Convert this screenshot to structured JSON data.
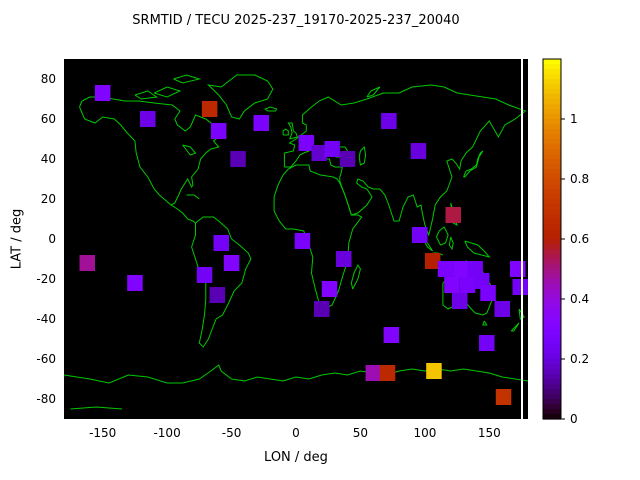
{
  "colors": {
    "page_bg": "#ffffff",
    "plot_bg": "#000000",
    "coastline": "#00c800",
    "text": "#000000"
  },
  "chart_data": {
    "type": "heatmap",
    "title": "SRMTID / TECU 2025-237_19170-2025-237_20040",
    "xlabel": "LON / deg",
    "ylabel": "LAT / deg",
    "xlim": [
      -180,
      180
    ],
    "ylim": [
      -90,
      90
    ],
    "xticks": [
      -150,
      -100,
      -50,
      0,
      50,
      100,
      150
    ],
    "yticks": [
      80,
      60,
      40,
      20,
      0,
      -20,
      -40,
      -60,
      -80
    ],
    "grid": false,
    "legend": "colorbar-right",
    "colorbar_range": [
      0,
      1.2
    ],
    "colorbar_ticks": [
      0,
      0.2,
      0.4,
      0.6,
      0.8,
      1
    ],
    "colormap": "gnuplot black-violet-magenta-orange-yellow",
    "cell_size_deg": {
      "lon": 12,
      "lat": 8
    },
    "points": [
      {
        "lon": -150,
        "lat": 73,
        "value": 0.3
      },
      {
        "lon": -115,
        "lat": 60,
        "value": 0.22
      },
      {
        "lon": -67,
        "lat": 65,
        "value": 0.65
      },
      {
        "lon": -60,
        "lat": 54,
        "value": 0.28
      },
      {
        "lon": -27,
        "lat": 58,
        "value": 0.28
      },
      {
        "lon": -45,
        "lat": 40,
        "value": 0.15
      },
      {
        "lon": 8,
        "lat": 48,
        "value": 0.28
      },
      {
        "lon": 18,
        "lat": 43,
        "value": 0.18
      },
      {
        "lon": 28,
        "lat": 45,
        "value": 0.25
      },
      {
        "lon": 40,
        "lat": 40,
        "value": 0.15
      },
      {
        "lon": 72,
        "lat": 59,
        "value": 0.22
      },
      {
        "lon": 95,
        "lat": 44,
        "value": 0.2
      },
      {
        "lon": 122,
        "lat": 12,
        "value": 0.55
      },
      {
        "lon": 96,
        "lat": 2,
        "value": 0.25
      },
      {
        "lon": 5,
        "lat": -1,
        "value": 0.28
      },
      {
        "lon": 37,
        "lat": -10,
        "value": 0.2
      },
      {
        "lon": 26,
        "lat": -25,
        "value": 0.3
      },
      {
        "lon": 20,
        "lat": -35,
        "value": 0.15
      },
      {
        "lon": -58,
        "lat": -2,
        "value": 0.25
      },
      {
        "lon": -50,
        "lat": -12,
        "value": 0.3
      },
      {
        "lon": -71,
        "lat": -18,
        "value": 0.25
      },
      {
        "lon": -61,
        "lat": -28,
        "value": 0.15
      },
      {
        "lon": -162,
        "lat": -12,
        "value": 0.48
      },
      {
        "lon": -125,
        "lat": -22,
        "value": 0.3
      },
      {
        "lon": 106,
        "lat": -11,
        "value": 0.6
      },
      {
        "lon": 116,
        "lat": -15,
        "value": 0.28
      },
      {
        "lon": 128,
        "lat": -15,
        "value": 0.3
      },
      {
        "lon": 139,
        "lat": -15,
        "value": 0.25
      },
      {
        "lon": 121,
        "lat": -23,
        "value": 0.3
      },
      {
        "lon": 133,
        "lat": -23,
        "value": 0.28
      },
      {
        "lon": 144,
        "lat": -21,
        "value": 0.25
      },
      {
        "lon": 127,
        "lat": -31,
        "value": 0.22
      },
      {
        "lon": 149,
        "lat": -27,
        "value": 0.28
      },
      {
        "lon": 172,
        "lat": -15,
        "value": 0.3
      },
      {
        "lon": 174,
        "lat": -24,
        "value": 0.25
      },
      {
        "lon": 160,
        "lat": -35,
        "value": 0.22
      },
      {
        "lon": 74,
        "lat": -48,
        "value": 0.3
      },
      {
        "lon": 148,
        "lat": -52,
        "value": 0.25
      },
      {
        "lon": 60,
        "lat": -67,
        "value": 0.45
      },
      {
        "lon": 71,
        "lat": -67,
        "value": 0.65
      },
      {
        "lon": 107,
        "lat": -66,
        "value": 1.1
      },
      {
        "lon": 161,
        "lat": -79,
        "value": 0.7
      }
    ]
  }
}
